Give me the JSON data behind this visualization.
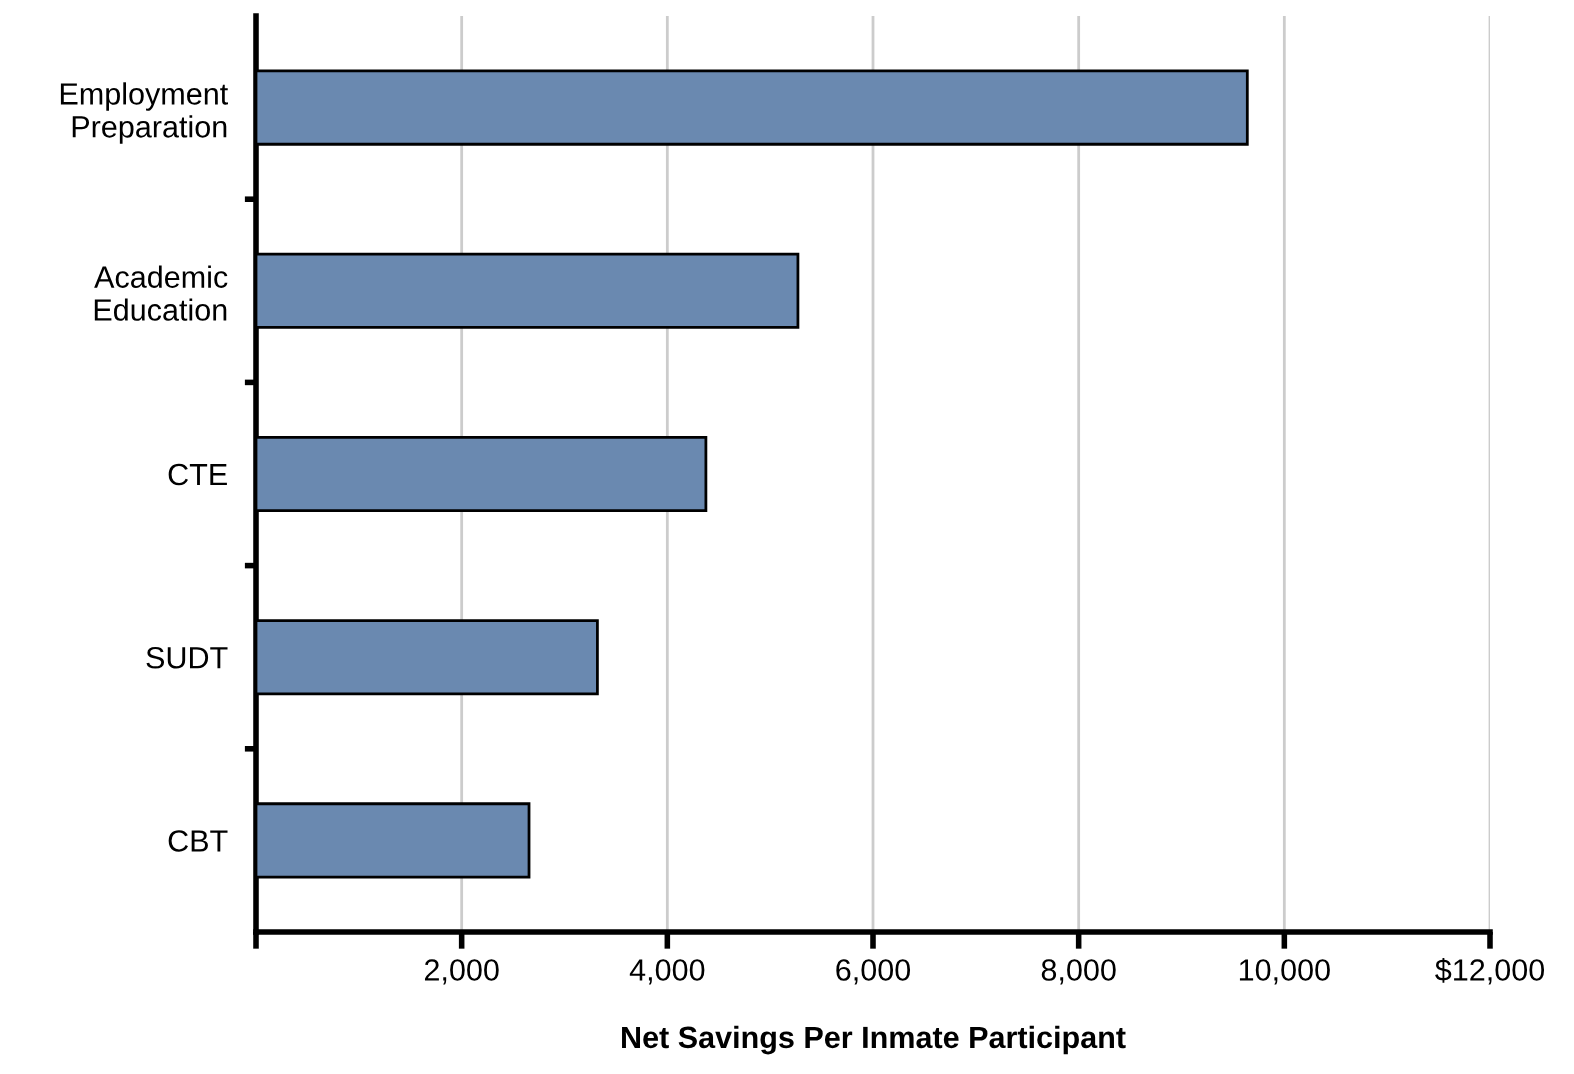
{
  "chart_data": {
    "type": "bar",
    "orientation": "horizontal",
    "xlabel": "Net Savings Per Inmate Participant",
    "categories": [
      "Employment\nPreparation",
      "Academic\nEducation",
      "CTE",
      "SUDT",
      "CBT"
    ],
    "series": [
      {
        "color": "#6a89b0",
        "values": [
          9640,
          5270,
          4375,
          3320,
          2655
        ]
      }
    ],
    "xlim": [
      0,
      12000
    ],
    "xticks": [
      {
        "value": 0,
        "label": null
      },
      {
        "value": 2000,
        "label": "2,000"
      },
      {
        "value": 4000,
        "label": "4,000"
      },
      {
        "value": 6000,
        "label": "6,000"
      },
      {
        "value": 8000,
        "label": "8,000"
      },
      {
        "value": 10000,
        "label": "10,000"
      },
      {
        "value": 12000,
        "label": "$12,000"
      }
    ],
    "grid": "x",
    "legend": false
  }
}
